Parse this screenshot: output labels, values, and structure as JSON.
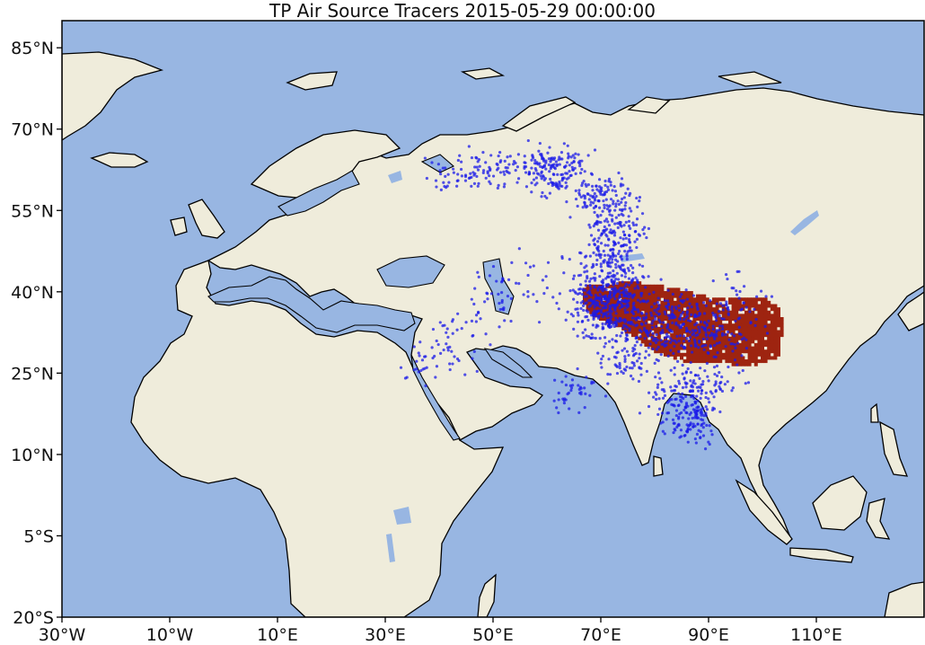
{
  "title": "TP Air Source Tracers 2015-05-29 00:00:00",
  "map": {
    "projection": "equirectangular",
    "lon_range": [
      -30,
      130
    ],
    "lat_range": [
      -20,
      90
    ],
    "colors": {
      "ocean": "#98b6e2",
      "land": "#efecdb",
      "coastline": "#000000",
      "lakes": "#98b6e2",
      "source_region": "#9e2410",
      "tracer_particles": "#1b1be8"
    }
  },
  "axes": {
    "y_ticks": [
      {
        "lat": 85,
        "label": "85°N"
      },
      {
        "lat": 70,
        "label": "70°N"
      },
      {
        "lat": 55,
        "label": "55°N"
      },
      {
        "lat": 40,
        "label": "40°N"
      },
      {
        "lat": 25,
        "label": "25°N"
      },
      {
        "lat": 10,
        "label": "10°N"
      },
      {
        "lat": -5,
        "label": "5°S"
      },
      {
        "lat": -20,
        "label": "20°S"
      }
    ],
    "x_ticks": [
      {
        "lon": -30,
        "label": "30°W"
      },
      {
        "lon": -10,
        "label": "10°W"
      },
      {
        "lon": 10,
        "label": "10°E"
      },
      {
        "lon": 30,
        "label": "30°E"
      },
      {
        "lon": 50,
        "label": "50°E"
      },
      {
        "lon": 70,
        "label": "70°E"
      },
      {
        "lon": 90,
        "label": "90°E"
      },
      {
        "lon": 110,
        "label": "110°E"
      }
    ]
  },
  "layers": {
    "source_region_name": "Tibetan Plateau source grid",
    "tracer_name": "air source tracer particles"
  }
}
